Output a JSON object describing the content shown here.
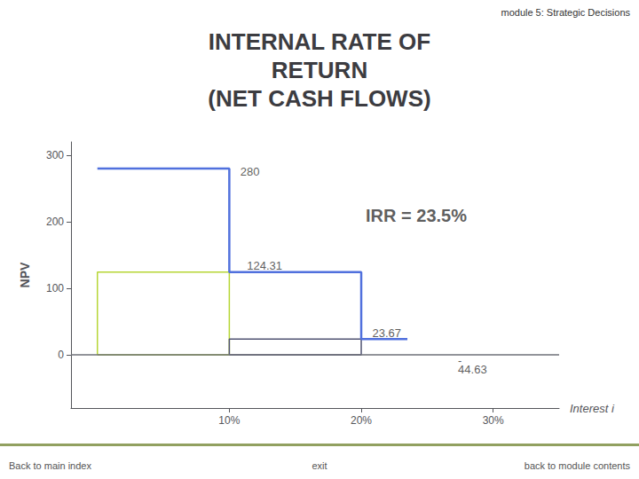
{
  "chart_data": {
    "type": "line",
    "title": "INTERNAL RATE OF\nRETURN\n(NET CASH FLOWS)",
    "header": "module 5: Strategic Decisions",
    "xlabel": "Interest i",
    "ylabel": "NPV",
    "x": [
      0,
      10,
      10,
      20,
      20,
      23.5
    ],
    "values": [
      280,
      280,
      124.31,
      124.31,
      23.67,
      23.67
    ],
    "xlim": [
      -2,
      35
    ],
    "ylim": [
      -80,
      320
    ],
    "xticks": [
      {
        "value": 10,
        "label": "10%"
      },
      {
        "value": 20,
        "label": "20%"
      },
      {
        "value": 30,
        "label": "30%"
      }
    ],
    "yticks": [
      0,
      100,
      200,
      300
    ],
    "hline": 0,
    "boxes": [
      {
        "x": [
          0,
          10
        ],
        "y": [
          0,
          124.31
        ]
      },
      {
        "x": [
          10,
          20
        ],
        "y": [
          0,
          23.67
        ]
      }
    ],
    "annotations": [
      {
        "text": "280",
        "x": 10.5,
        "y": 276
      },
      {
        "text": "124.31",
        "x": 11,
        "y": 134
      },
      {
        "text": "23.67",
        "x": 20.5,
        "y": 33
      },
      {
        "text": "-",
        "x": 27,
        "y": -8
      },
      {
        "text": "44.63",
        "x": 27,
        "y": -22
      }
    ],
    "callout": {
      "text": "IRR = 23.5%",
      "x": 20,
      "y": 210
    },
    "footer": [
      "Back to main index",
      "exit",
      "back to module contents"
    ],
    "grid": false
  }
}
